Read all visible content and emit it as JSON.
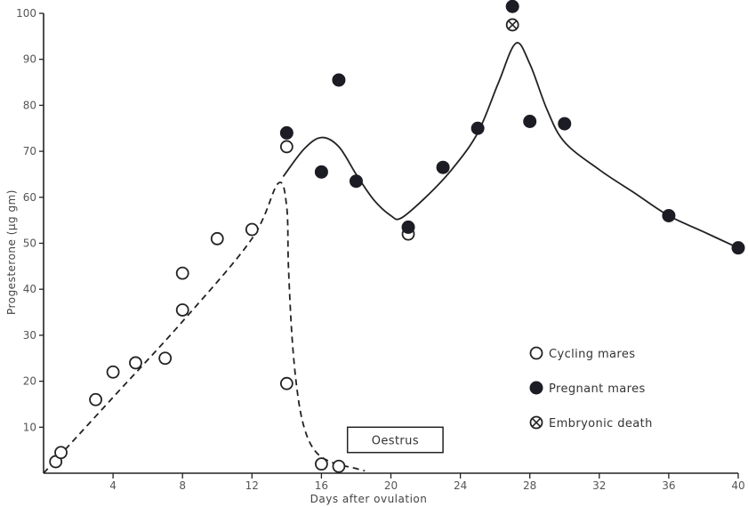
{
  "chart_data": {
    "type": "scatter",
    "title": "",
    "xlabel": "Days after ovulation",
    "ylabel": "Progesterone (µg gm)",
    "xlim": [
      0,
      40
    ],
    "ylim": [
      0,
      100
    ],
    "xticks": [
      4,
      8,
      12,
      16,
      20,
      24,
      28,
      32,
      36,
      40
    ],
    "yticks": [
      10,
      20,
      30,
      40,
      50,
      60,
      70,
      80,
      90,
      100
    ],
    "grid": false,
    "legend_position": "bottom-right",
    "series": [
      {
        "name": "Cycling mares",
        "marker": "open-circle",
        "points": [
          [
            0.7,
            2.5
          ],
          [
            1.0,
            4.5
          ],
          [
            3.0,
            16
          ],
          [
            4.0,
            22
          ],
          [
            5.3,
            24
          ],
          [
            7.0,
            25
          ],
          [
            8.0,
            35.5
          ],
          [
            8.0,
            43.5
          ],
          [
            10.0,
            51
          ],
          [
            12.0,
            53
          ],
          [
            14.0,
            71
          ],
          [
            14.0,
            19.5
          ],
          [
            16.0,
            2
          ],
          [
            17.0,
            1.5
          ],
          [
            21.0,
            52
          ]
        ]
      },
      {
        "name": "Pregnant mares",
        "marker": "filled-circle",
        "points": [
          [
            14.0,
            74
          ],
          [
            16.0,
            65.5
          ],
          [
            17.0,
            85.5
          ],
          [
            18.0,
            63.5
          ],
          [
            21.0,
            53.5
          ],
          [
            23.0,
            66.5
          ],
          [
            25.0,
            75
          ],
          [
            27.0,
            101.5
          ],
          [
            28.0,
            76.5
          ],
          [
            30.0,
            76
          ],
          [
            36.0,
            56
          ],
          [
            40.0,
            49
          ]
        ]
      },
      {
        "name": "Embryonic death",
        "marker": "crossed-circle",
        "points": [
          [
            27.0,
            97.5
          ]
        ]
      }
    ],
    "curves": [
      {
        "name": "cycling-trend",
        "style": "dashed",
        "points": [
          [
            0,
            0
          ],
          [
            4,
            16.5
          ],
          [
            8,
            33
          ],
          [
            12,
            51
          ],
          [
            13.5,
            63
          ],
          [
            14.0,
            58
          ],
          [
            14.1,
            45
          ],
          [
            14.3,
            30
          ],
          [
            14.6,
            18
          ],
          [
            15.0,
            10
          ],
          [
            15.6,
            5
          ],
          [
            16.5,
            2.5
          ],
          [
            18.0,
            1
          ],
          [
            18.5,
            0.5
          ]
        ]
      },
      {
        "name": "pregnant-trend",
        "style": "solid",
        "points": [
          [
            13.8,
            64.5
          ],
          [
            15.0,
            70.5
          ],
          [
            16.0,
            73
          ],
          [
            17.0,
            71
          ],
          [
            18.0,
            65
          ],
          [
            19.0,
            59.5
          ],
          [
            20.0,
            56
          ],
          [
            20.6,
            55.5
          ],
          [
            22.0,
            60
          ],
          [
            23.5,
            66
          ],
          [
            25.0,
            74
          ],
          [
            26.2,
            85
          ],
          [
            27.2,
            93.5
          ],
          [
            28.0,
            89
          ],
          [
            29.0,
            79
          ],
          [
            30.0,
            72
          ],
          [
            32.0,
            66
          ],
          [
            34.0,
            61
          ],
          [
            36.0,
            56
          ],
          [
            38.0,
            52.5
          ],
          [
            40.0,
            49
          ]
        ]
      }
    ],
    "annotations": [
      {
        "text": "Oestrus",
        "x_range": [
          17.5,
          23.0
        ],
        "y_range": [
          4.5,
          10
        ]
      }
    ]
  }
}
